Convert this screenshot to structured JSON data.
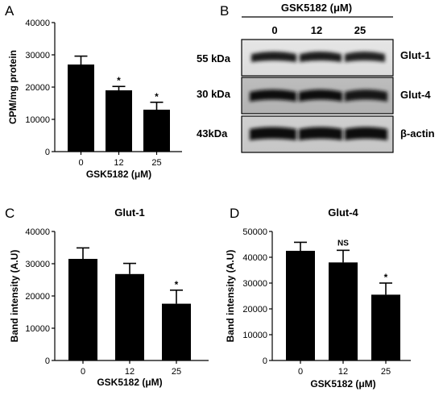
{
  "figure": {
    "panels": {
      "A": "A",
      "B": "B",
      "C": "C",
      "D": "D"
    }
  },
  "chart_data": [
    {
      "id": "A",
      "type": "bar",
      "title": "",
      "xlabel": "GSK5182 (μM)",
      "ylabel": "CPM/mg protein",
      "categories": [
        "0",
        "12",
        "25"
      ],
      "values": [
        27000,
        19000,
        13000
      ],
      "errors": [
        2600,
        1200,
        2300
      ],
      "significance": [
        "",
        "*",
        "*"
      ],
      "ylim": [
        0,
        40000
      ],
      "yticks": [
        "0",
        "10000",
        "20000",
        "30000",
        "40000"
      ],
      "grid": false,
      "bar_color": "#000000"
    },
    {
      "id": "C",
      "type": "bar",
      "title": "Glut-1",
      "xlabel": "GSK5182 (μM)",
      "ylabel": "Band intensity (A.U)",
      "categories": [
        "0",
        "12",
        "25"
      ],
      "values": [
        31500,
        26800,
        17600
      ],
      "errors": [
        3400,
        3300,
        4200
      ],
      "significance": [
        "",
        "",
        "*"
      ],
      "ylim": [
        0,
        40000
      ],
      "yticks": [
        "0",
        "10000",
        "20000",
        "30000",
        "40000"
      ],
      "grid": false,
      "bar_color": "#000000"
    },
    {
      "id": "D",
      "type": "bar",
      "title": "Glut-4",
      "xlabel": "GSK5182 (μM)",
      "ylabel": "Band intensity (A.U)",
      "categories": [
        "0",
        "12",
        "25"
      ],
      "values": [
        42500,
        38000,
        25500
      ],
      "errors": [
        3300,
        4700,
        4500
      ],
      "significance": [
        "",
        "NS",
        "*"
      ],
      "ylim": [
        0,
        50000
      ],
      "yticks": [
        "0",
        "10000",
        "20000",
        "30000",
        "40000",
        "50000"
      ],
      "grid": false,
      "bar_color": "#000000"
    }
  ],
  "blot": {
    "treatment_label": "GSK5182 (μM)",
    "lanes": [
      "0",
      "12",
      "25"
    ],
    "rows": [
      {
        "size": "55 kDa",
        "protein": "Glut-1"
      },
      {
        "size": "30 kDa",
        "protein": "Glut-4"
      },
      {
        "size": "43kDa",
        "protein": "β-actin"
      }
    ]
  }
}
